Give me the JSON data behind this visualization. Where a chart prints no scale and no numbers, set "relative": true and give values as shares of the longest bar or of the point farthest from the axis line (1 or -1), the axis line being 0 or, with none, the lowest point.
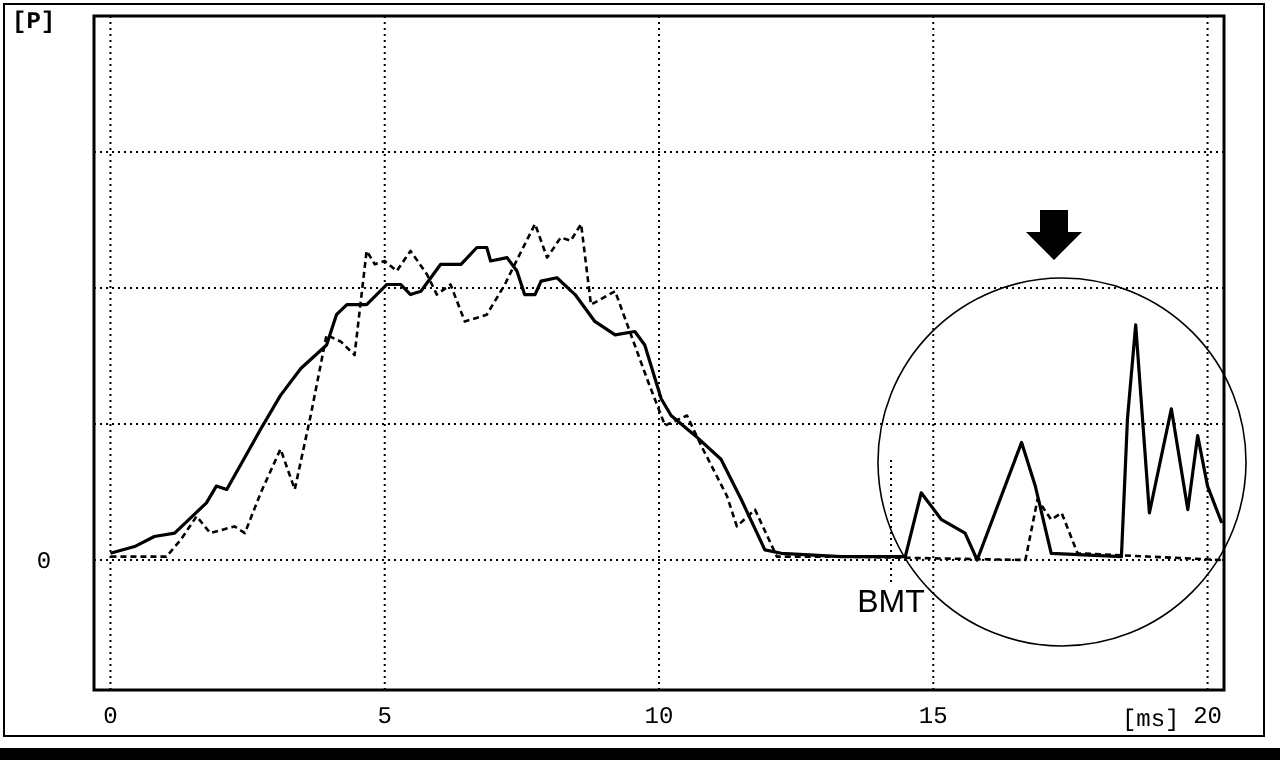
{
  "chart_data": {
    "type": "line",
    "relative": true,
    "xlabel": "[ms]",
    "xlim": [
      -0.3,
      20.3
    ],
    "xticks": [
      0,
      5,
      10,
      15,
      20
    ],
    "grid": true,
    "marker": "none",
    "annotations": [
      "[P]",
      "0"
    ],
    "ref_lines": [
      {
        "axis": "x",
        "value": 14.23,
        "label": "BMT",
        "line_style": "dotted",
        "color": "#000000"
      }
    ],
    "series": [
      {
        "color": "#000000",
        "line_style": "solid",
        "x": [
          0,
          0.44,
          0.8,
          1.17,
          1.75,
          1.93,
          2.12,
          2.74,
          3.1,
          3.47,
          3.94,
          4.12,
          4.31,
          4.67,
          5.04,
          5.29,
          5.47,
          5.66,
          6.02,
          6.39,
          6.68,
          6.86,
          6.93,
          7.23,
          7.41,
          7.55,
          7.74,
          7.85,
          8.14,
          8.47,
          8.83,
          9.2,
          9.56,
          9.74,
          10.04,
          10.22,
          10.66,
          11.13,
          11.5,
          11.93,
          12.23,
          13.32,
          14.49,
          14.78,
          15.15,
          15.58,
          15.8,
          16.61,
          16.86,
          17.15,
          18.43,
          18.54,
          18.69,
          18.94,
          19.34,
          19.64,
          19.82,
          20,
          20.26
        ],
        "values": [
          0.02,
          0.04,
          0.07,
          0.08,
          0.17,
          0.22,
          0.21,
          0.39,
          0.49,
          0.57,
          0.64,
          0.73,
          0.76,
          0.76,
          0.82,
          0.82,
          0.79,
          0.8,
          0.88,
          0.88,
          0.93,
          0.93,
          0.89,
          0.9,
          0.86,
          0.79,
          0.79,
          0.83,
          0.84,
          0.79,
          0.71,
          0.67,
          0.68,
          0.64,
          0.48,
          0.43,
          0.37,
          0.3,
          0.18,
          0.03,
          0.02,
          0.01,
          0.01,
          0.2,
          0.12,
          0.08,
          0,
          0.35,
          0.22,
          0.02,
          0.01,
          0.42,
          0.7,
          0.14,
          0.45,
          0.15,
          0.37,
          0.22,
          0.11
        ]
      },
      {
        "color": "#000000",
        "line_style": "dashed",
        "x": [
          0,
          1.02,
          1.28,
          1.57,
          1.82,
          2.26,
          2.45,
          2.74,
          3.1,
          3.36,
          3.65,
          3.94,
          4.2,
          4.45,
          4.67,
          4.82,
          5,
          5.22,
          5.47,
          5.77,
          5.95,
          6.2,
          6.46,
          6.86,
          7.19,
          7.37,
          7.74,
          7.96,
          8.21,
          8.39,
          8.58,
          8.76,
          9.2,
          9.49,
          9.78,
          10.11,
          10.51,
          10.77,
          11.24,
          11.42,
          11.75,
          12.15,
          13.32,
          16.68,
          16.9,
          17.15,
          17.34,
          17.63,
          20.26
        ],
        "values": [
          0.01,
          0.01,
          0.06,
          0.13,
          0.08,
          0.1,
          0.08,
          0.2,
          0.33,
          0.21,
          0.43,
          0.67,
          0.65,
          0.61,
          0.92,
          0.88,
          0.89,
          0.86,
          0.92,
          0.85,
          0.79,
          0.82,
          0.71,
          0.73,
          0.82,
          0.88,
          1,
          0.9,
          0.96,
          0.95,
          1,
          0.76,
          0.8,
          0.67,
          0.54,
          0.4,
          0.43,
          0.34,
          0.19,
          0.1,
          0.15,
          0.01,
          0.01,
          0,
          0.18,
          0.12,
          0.14,
          0.02,
          0
        ]
      }
    ]
  }
}
